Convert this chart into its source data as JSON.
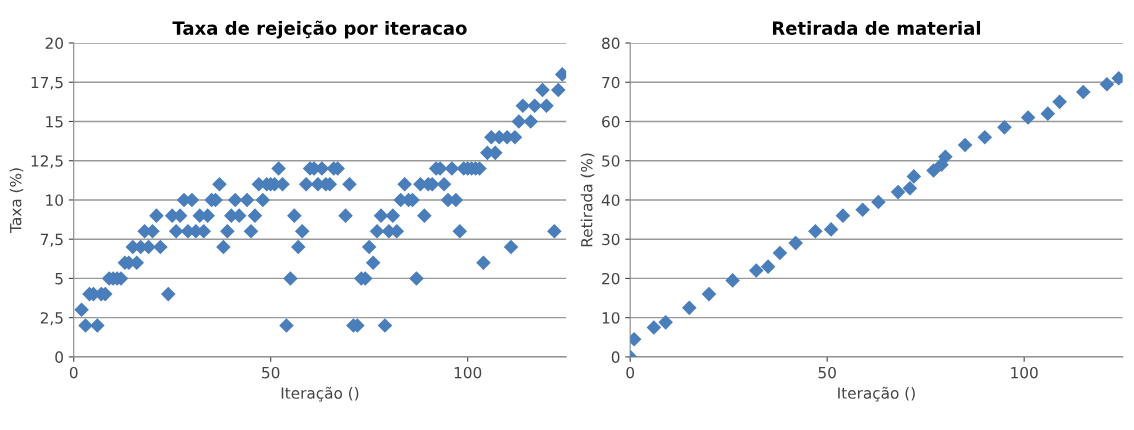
{
  "chart_data": [
    {
      "type": "scatter",
      "title": "Taxa de rejeição por iteracao",
      "xlabel": "Iteração ()",
      "ylabel": "Taxa (%)",
      "marker": "diamond",
      "grid": "y",
      "legend": false,
      "xlim": [
        0,
        125
      ],
      "xticks": [
        0,
        50,
        100
      ],
      "ylim": [
        0,
        20
      ],
      "yticks": [
        0,
        {
          "value": 2.5,
          "label": "2,5"
        },
        5,
        {
          "value": 7.5,
          "label": "7,5"
        },
        10,
        {
          "value": 12.5,
          "label": "12,5"
        },
        15,
        {
          "value": 17.5,
          "label": "17,5"
        },
        20
      ],
      "series": [
        {
          "color": "#4a7ebb",
          "x": [
            2,
            3,
            4,
            5,
            6,
            7,
            8,
            9,
            10,
            11,
            12,
            13,
            14,
            15,
            16,
            17,
            18,
            19,
            20,
            21,
            22,
            24,
            25,
            26,
            27,
            28,
            29,
            30,
            31,
            32,
            33,
            34,
            35,
            36,
            37,
            38,
            39,
            40,
            41,
            42,
            44,
            45,
            46,
            47,
            48,
            49,
            50,
            51,
            52,
            53,
            54,
            55,
            56,
            57,
            58,
            59,
            60,
            61,
            62,
            63,
            64,
            65,
            66,
            67,
            69,
            70,
            71,
            72,
            73,
            74,
            75,
            76,
            77,
            78,
            79,
            80,
            81,
            82,
            83,
            84,
            85,
            86,
            87,
            88,
            89,
            90,
            91,
            92,
            93,
            94,
            95,
            96,
            97,
            98,
            99,
            100,
            101,
            102,
            103,
            104,
            105,
            106,
            107,
            108,
            110,
            111,
            112,
            113,
            114,
            116,
            117,
            119,
            120,
            122,
            123,
            124
          ],
          "values": [
            3,
            2,
            4,
            4,
            2,
            4,
            4,
            5,
            5,
            5,
            5,
            6,
            6,
            7,
            6,
            7,
            8,
            7,
            8,
            9,
            7,
            4,
            9,
            8,
            9,
            10,
            8,
            10,
            8,
            9,
            8,
            9,
            10,
            10,
            11,
            7,
            8,
            9,
            10,
            9,
            10,
            8,
            9,
            11,
            10,
            11,
            11,
            11,
            12,
            11,
            2,
            5,
            9,
            7,
            8,
            11,
            12,
            12,
            11,
            12,
            11,
            11,
            12,
            12,
            9,
            11,
            2,
            2,
            5,
            5,
            7,
            6,
            8,
            9,
            2,
            8,
            9,
            8,
            10,
            11,
            10,
            10,
            5,
            11,
            9,
            11,
            11,
            12,
            12,
            11,
            10,
            12,
            10,
            8,
            12,
            12,
            12,
            12,
            12,
            6,
            13,
            14,
            13,
            14,
            14,
            7,
            14,
            15,
            16,
            15,
            16,
            17,
            16,
            8,
            17,
            18
          ]
        }
      ]
    },
    {
      "type": "scatter",
      "title": "Retirada de material",
      "xlabel": "Iteração ()",
      "ylabel": "Retirada (%)",
      "marker": "diamond",
      "grid": "y",
      "legend": false,
      "xlim": [
        0,
        125
      ],
      "xticks": [
        0,
        50,
        100
      ],
      "ylim": [
        0,
        80
      ],
      "yticks": [
        0,
        10,
        20,
        30,
        40,
        50,
        60,
        70,
        80
      ],
      "series": [
        {
          "color": "#4a7ebb",
          "x": [
            0,
            1,
            6,
            9,
            15,
            20,
            26,
            32,
            35,
            38,
            42,
            47,
            51,
            54,
            59,
            63,
            68,
            71,
            72,
            77,
            79,
            80,
            85,
            90,
            95,
            101,
            106,
            109,
            115,
            121,
            124
          ],
          "values": [
            0,
            4.5,
            7.5,
            8.8,
            12.5,
            16,
            19.5,
            22,
            23,
            26.5,
            29,
            32,
            32.5,
            36,
            37.5,
            39.5,
            42,
            43,
            46,
            47.5,
            49,
            51,
            54,
            56,
            58.5,
            61,
            62,
            65,
            67.5,
            69.5,
            71
          ]
        }
      ]
    }
  ]
}
